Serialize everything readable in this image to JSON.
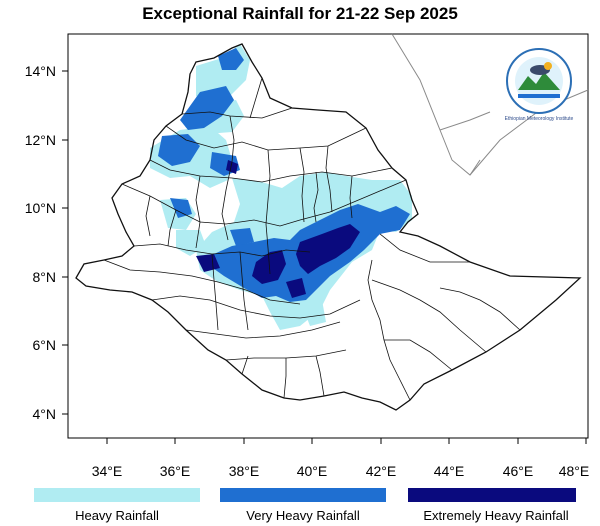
{
  "title": "Exceptional Rainfall for 21-22 Sep 2025",
  "axes": {
    "x_ticks": [
      "34°E",
      "36°E",
      "38°E",
      "40°E",
      "42°E",
      "44°E",
      "46°E",
      "48°E"
    ],
    "y_ticks": [
      "14°N",
      "12°N",
      "10°N",
      "8°N",
      "6°N",
      "4°N"
    ]
  },
  "legend": [
    {
      "label": "Heavy Rainfall",
      "color": "#b0ecf2"
    },
    {
      "label": "Very Heavy Rainfall",
      "color": "#1f6fd1"
    },
    {
      "label": "Extremely Heavy Rainfall",
      "color": "#0a0a7e"
    }
  ],
  "logo": {
    "icon": "ethiopian-meteorology-institute-logo",
    "text": "Ethiopian Meteorology Institute"
  },
  "colors": {
    "heavy": "#b0ecf2",
    "very_heavy": "#1f6fd1",
    "extreme": "#0a0a7e",
    "border": "#111111",
    "neighbor_border": "#8a8a8a"
  }
}
